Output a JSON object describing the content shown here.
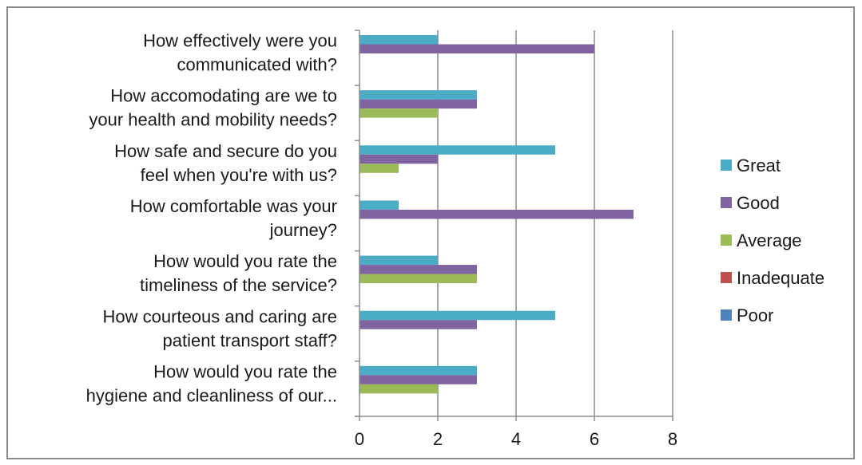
{
  "chart_data": {
    "type": "bar",
    "orientation": "horizontal",
    "categories": [
      [
        "How effectively were you",
        "communicated with?"
      ],
      [
        "How accomodating are we to",
        "your health and mobility needs?"
      ],
      [
        "How safe and secure do you",
        "feel when you're with us?"
      ],
      [
        "How comfortable was your",
        "journey?"
      ],
      [
        "How would you rate the",
        "timeliness of the service?"
      ],
      [
        "How courteous and caring are",
        "patient transport staff?"
      ],
      [
        "How would you rate the",
        "hygiene and cleanliness of our..."
      ]
    ],
    "series": [
      {
        "name": "Great",
        "color": "#4bacc6",
        "values": [
          2,
          3,
          5,
          1,
          2,
          5,
          3
        ]
      },
      {
        "name": "Good",
        "color": "#8064a2",
        "values": [
          6,
          3,
          2,
          7,
          3,
          3,
          3
        ]
      },
      {
        "name": "Average",
        "color": "#9bbb59",
        "values": [
          0,
          2,
          1,
          0,
          3,
          0,
          2
        ]
      },
      {
        "name": "Inadequate",
        "color": "#c0504d",
        "values": [
          0,
          0,
          0,
          0,
          0,
          0,
          0
        ]
      },
      {
        "name": "Poor",
        "color": "#4f81bd",
        "values": [
          0,
          0,
          0,
          0,
          0,
          0,
          0
        ]
      }
    ],
    "xlim": [
      0,
      8
    ],
    "xticks": [
      0,
      2,
      4,
      6,
      8
    ],
    "grid": true,
    "legend_position": "right"
  }
}
